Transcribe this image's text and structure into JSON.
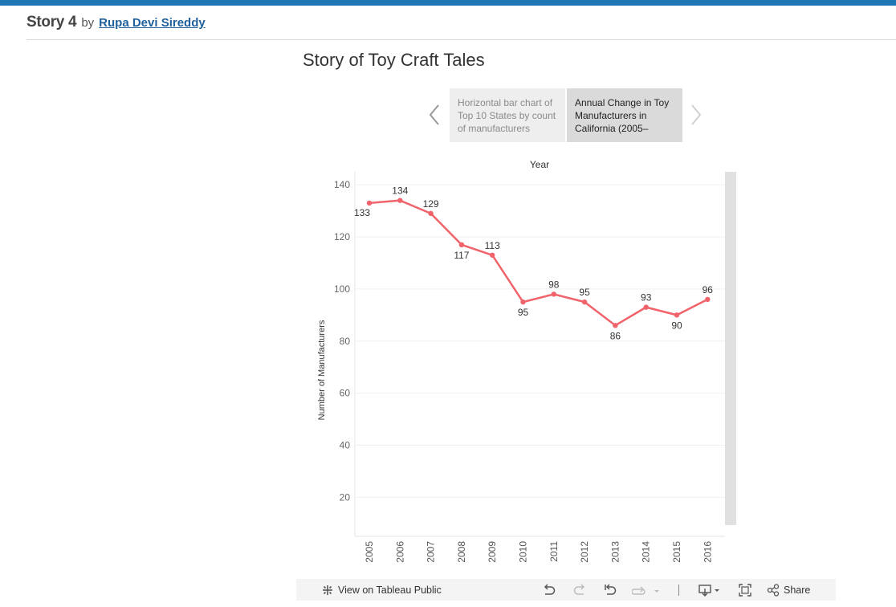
{
  "header": {
    "story_name": "Story 4",
    "by_label": "by",
    "author": "Rupa Devi Sireddy"
  },
  "story": {
    "title": "Story of Toy Craft Tales",
    "points": [
      {
        "label": "Horizontal bar chart of Top 10 States by count of manufacturers",
        "selected": false
      },
      {
        "label": "Annual Change in Toy Manufacturers in California (2005–",
        "selected": true
      }
    ]
  },
  "chart_data": {
    "type": "line",
    "title": "Year",
    "xlabel": "",
    "ylabel": "Number of Manufacturers",
    "categories": [
      "2005",
      "2006",
      "2007",
      "2008",
      "2009",
      "2010",
      "2011",
      "2012",
      "2013",
      "2014",
      "2015",
      "2016"
    ],
    "values": [
      133,
      134,
      129,
      117,
      113,
      95,
      98,
      95,
      86,
      93,
      90,
      96
    ],
    "yticks": [
      20,
      40,
      60,
      80,
      100,
      120,
      140
    ],
    "ylim": [
      5,
      145
    ],
    "line_color": "#f0636b",
    "grid": true,
    "legend": "none",
    "label_positions": [
      "below",
      "above",
      "above",
      "below",
      "above",
      "below",
      "above",
      "above",
      "below",
      "above",
      "below",
      "above"
    ]
  },
  "toolbar": {
    "view_label": "View on Tableau Public",
    "share_label": "Share"
  },
  "colors": {
    "top_bar": "#1f77b4",
    "author_link": "#1f5f9c",
    "line": "#f0636b",
    "scrollbar": "#e0e0e0"
  },
  "icons": [
    "undo-icon",
    "redo-icon",
    "revert-icon",
    "refresh-icon",
    "download-icon",
    "fullscreen-icon",
    "share-icon",
    "tableau-logo-icon",
    "chevron-left-icon",
    "chevron-right-icon"
  ]
}
